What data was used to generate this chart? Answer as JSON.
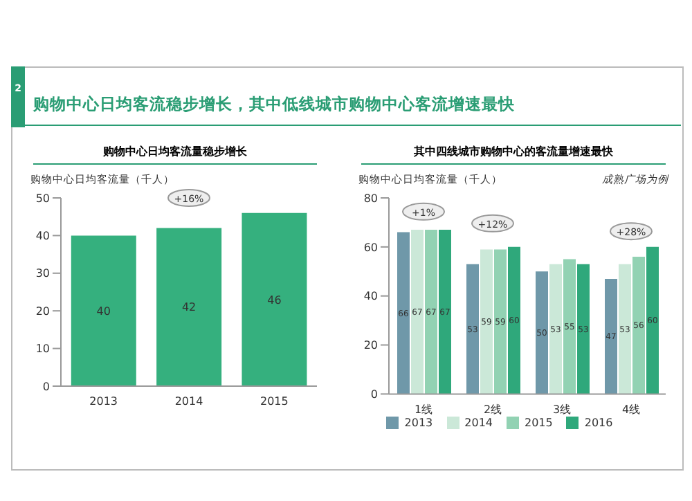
{
  "chart_data": [
    {
      "type": "bar",
      "title": "购物中心日均客流稳步增长，其中低线城市购物中心客流增速最快",
      "subtitle": "购物中心日均客流量稳步增长",
      "ylabel": "购物中心日均客流量（千人）",
      "categories": [
        "2013",
        "2014",
        "2015"
      ],
      "values": [
        40,
        42,
        46
      ],
      "color": "#35b07e",
      "ylim": [
        0,
        50
      ],
      "yticks": [
        0,
        10,
        20,
        30,
        40,
        50
      ],
      "data_labels": true,
      "grid": false,
      "legend": false,
      "annotations": [
        "2",
        "+16%"
      ]
    },
    {
      "type": "bar",
      "subtitle": "其中四线城市购物中心的客流量增速最快",
      "ylabel": "购物中心日均客流量（千人）",
      "categories": [
        "1线",
        "2线",
        "3线",
        "4线"
      ],
      "series": [
        {
          "name": "2013",
          "color": "#6f98a9",
          "values": [
            66,
            53,
            50,
            47
          ]
        },
        {
          "name": "2014",
          "color": "#cbe8d8",
          "values": [
            67,
            59,
            53,
            53
          ]
        },
        {
          "name": "2015",
          "color": "#92d2b3",
          "values": [
            67,
            59,
            55,
            56
          ]
        },
        {
          "name": "2016",
          "color": "#2fa87b",
          "values": [
            67,
            60,
            53,
            60
          ]
        }
      ],
      "ylim": [
        0,
        80
      ],
      "yticks": [
        0,
        20,
        40,
        60,
        80
      ],
      "data_labels": true,
      "grid": false,
      "legend": "bottom",
      "annotations": [
        "成熟广场为例",
        "+1%",
        "+12%",
        "+28%"
      ]
    }
  ]
}
